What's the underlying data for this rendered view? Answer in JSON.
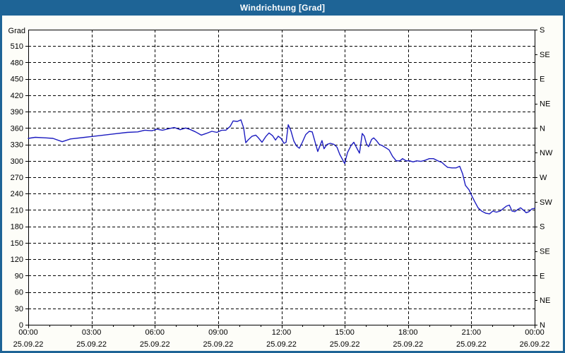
{
  "window": {
    "title": "Windrichtung [Grad]"
  },
  "colors": {
    "frame": "#1e6496",
    "titlebar": "#1e6496",
    "surface": "#fdfdf8",
    "plot_background": "#ffffff",
    "grid": "#000000",
    "line": "#1c1cc0",
    "label": "#000000",
    "title_text": "#ffffff"
  },
  "chart_data": {
    "type": "line",
    "title": "Windrichtung [Grad]",
    "grid": true,
    "legend": "none",
    "y_axis": {
      "label": "Grad",
      "min": 0,
      "max": 540,
      "tick_step": 30
    },
    "y2_axis": {
      "ticks": [
        {
          "deg": 0,
          "label": "N"
        },
        {
          "deg": 45,
          "label": "NE"
        },
        {
          "deg": 90,
          "label": "E"
        },
        {
          "deg": 135,
          "label": "SE"
        },
        {
          "deg": 180,
          "label": "S"
        },
        {
          "deg": 225,
          "label": "SW"
        },
        {
          "deg": 270,
          "label": "W"
        },
        {
          "deg": 315,
          "label": "NW"
        },
        {
          "deg": 360,
          "label": "N"
        },
        {
          "deg": 405,
          "label": "NE"
        },
        {
          "deg": 450,
          "label": "E"
        },
        {
          "deg": 495,
          "label": "SE"
        },
        {
          "deg": 540,
          "label": "S"
        }
      ]
    },
    "x_axis": {
      "range_hours": [
        0,
        24
      ],
      "minor_tick_every_hours": 1,
      "major_ticks": [
        {
          "hour": 0,
          "time": "00:00",
          "date": "25.09.22"
        },
        {
          "hour": 3,
          "time": "03:00",
          "date": "25.09.22"
        },
        {
          "hour": 6,
          "time": "06:00",
          "date": "25.09.22"
        },
        {
          "hour": 9,
          "time": "09:00",
          "date": "25.09.22"
        },
        {
          "hour": 12,
          "time": "12:00",
          "date": "25.09.22"
        },
        {
          "hour": 15,
          "time": "15:00",
          "date": "25.09.22"
        },
        {
          "hour": 18,
          "time": "18:00",
          "date": "25.09.22"
        },
        {
          "hour": 21,
          "time": "21:00",
          "date": "25.09.22"
        },
        {
          "hour": 24,
          "time": "00:00",
          "date": "26.09.22"
        }
      ]
    },
    "series": [
      {
        "name": "Windrichtung",
        "color": "#1c1cc0",
        "points": [
          [
            0,
            341
          ],
          [
            0.33,
            343
          ],
          [
            0.84,
            342
          ],
          [
            1.17,
            341
          ],
          [
            1.61,
            335
          ],
          [
            2.0,
            340
          ],
          [
            2.68,
            343
          ],
          [
            3.35,
            346
          ],
          [
            4.02,
            349
          ],
          [
            4.69,
            352
          ],
          [
            5.19,
            353
          ],
          [
            5.52,
            356
          ],
          [
            5.86,
            355
          ],
          [
            6.09,
            358
          ],
          [
            6.36,
            356
          ],
          [
            6.69,
            359
          ],
          [
            6.93,
            361
          ],
          [
            7.2,
            357
          ],
          [
            7.46,
            360
          ],
          [
            7.7,
            357
          ],
          [
            7.93,
            353
          ],
          [
            8.2,
            347
          ],
          [
            8.43,
            350
          ],
          [
            8.7,
            354
          ],
          [
            8.94,
            352
          ],
          [
            9.17,
            356
          ],
          [
            9.37,
            356
          ],
          [
            9.57,
            363
          ],
          [
            9.71,
            373
          ],
          [
            9.91,
            372
          ],
          [
            10.08,
            375
          ],
          [
            10.21,
            360
          ],
          [
            10.31,
            333
          ],
          [
            10.44,
            339
          ],
          [
            10.61,
            345
          ],
          [
            10.78,
            347
          ],
          [
            10.91,
            342
          ],
          [
            11.08,
            334
          ],
          [
            11.25,
            344
          ],
          [
            11.41,
            351
          ],
          [
            11.58,
            346
          ],
          [
            11.72,
            338
          ],
          [
            11.85,
            345
          ],
          [
            11.98,
            341
          ],
          [
            12.12,
            332
          ],
          [
            12.22,
            334
          ],
          [
            12.32,
            366
          ],
          [
            12.45,
            355
          ],
          [
            12.59,
            336
          ],
          [
            12.72,
            327
          ],
          [
            12.85,
            323
          ],
          [
            12.99,
            334
          ],
          [
            13.15,
            348
          ],
          [
            13.32,
            354
          ],
          [
            13.46,
            353
          ],
          [
            13.59,
            335
          ],
          [
            13.72,
            317
          ],
          [
            13.86,
            331
          ],
          [
            13.92,
            337
          ],
          [
            14.02,
            322
          ],
          [
            14.16,
            330
          ],
          [
            14.32,
            332
          ],
          [
            14.49,
            330
          ],
          [
            14.63,
            325
          ],
          [
            14.76,
            312
          ],
          [
            14.9,
            302
          ],
          [
            15.0,
            295
          ],
          [
            15.13,
            315
          ],
          [
            15.3,
            328
          ],
          [
            15.43,
            334
          ],
          [
            15.56,
            324
          ],
          [
            15.7,
            314
          ],
          [
            15.83,
            350
          ],
          [
            15.93,
            345
          ],
          [
            16.03,
            331
          ],
          [
            16.13,
            326
          ],
          [
            16.27,
            339
          ],
          [
            16.37,
            342
          ],
          [
            16.5,
            337
          ],
          [
            16.64,
            330
          ],
          [
            16.77,
            328
          ],
          [
            16.94,
            324
          ],
          [
            17.1,
            320
          ],
          [
            17.27,
            308
          ],
          [
            17.44,
            300
          ],
          [
            17.61,
            300
          ],
          [
            17.74,
            304
          ],
          [
            17.91,
            300
          ],
          [
            18.08,
            300
          ],
          [
            18.24,
            298
          ],
          [
            18.41,
            300
          ],
          [
            18.61,
            299
          ],
          [
            18.81,
            301
          ],
          [
            19.01,
            304
          ],
          [
            19.21,
            304
          ],
          [
            19.41,
            300
          ],
          [
            19.61,
            297
          ],
          [
            19.75,
            292
          ],
          [
            19.88,
            288
          ],
          [
            20.08,
            287
          ],
          [
            20.28,
            287
          ],
          [
            20.45,
            290
          ],
          [
            20.59,
            276
          ],
          [
            20.72,
            255
          ],
          [
            20.89,
            247
          ],
          [
            21.02,
            236
          ],
          [
            21.15,
            226
          ],
          [
            21.32,
            214
          ],
          [
            21.49,
            208
          ],
          [
            21.69,
            204
          ],
          [
            21.86,
            203
          ],
          [
            22.02,
            208
          ],
          [
            22.19,
            206
          ],
          [
            22.36,
            208
          ],
          [
            22.53,
            213
          ],
          [
            22.66,
            217
          ],
          [
            22.8,
            219
          ],
          [
            22.93,
            208
          ],
          [
            23.06,
            207
          ],
          [
            23.2,
            211
          ],
          [
            23.33,
            214
          ],
          [
            23.46,
            210
          ],
          [
            23.6,
            205
          ],
          [
            23.73,
            207
          ],
          [
            23.87,
            212
          ],
          [
            24,
            213
          ]
        ]
      }
    ]
  }
}
